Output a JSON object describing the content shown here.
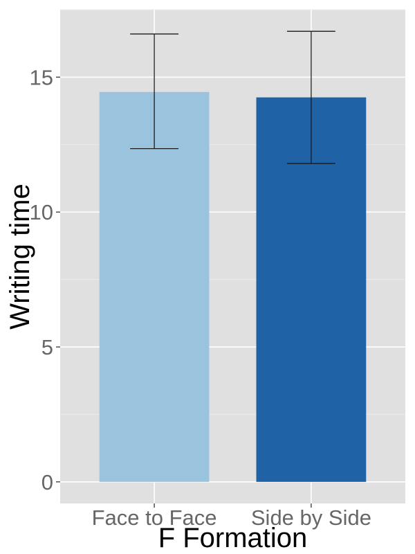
{
  "chart_data": {
    "type": "bar",
    "title": "",
    "xlabel": "F Formation",
    "ylabel": "Writing time",
    "categories": [
      "Face to Face",
      "Side by Side"
    ],
    "values": [
      14.45,
      14.25
    ],
    "error_bars": [
      {
        "lower": 12.35,
        "upper": 16.6
      },
      {
        "lower": 11.8,
        "upper": 16.7
      }
    ],
    "bar_colors": [
      "#9ac4de",
      "#1f63a6"
    ],
    "ylim": [
      -0.8,
      17.5
    ],
    "yticks": [
      {
        "value": 0,
        "label": "0"
      },
      {
        "value": 5,
        "label": "5"
      },
      {
        "value": 10,
        "label": "10"
      },
      {
        "value": 15,
        "label": "15"
      }
    ],
    "grid": true,
    "legend": "none",
    "background": "#e0e0e0",
    "grid_color": "#ffffff"
  }
}
